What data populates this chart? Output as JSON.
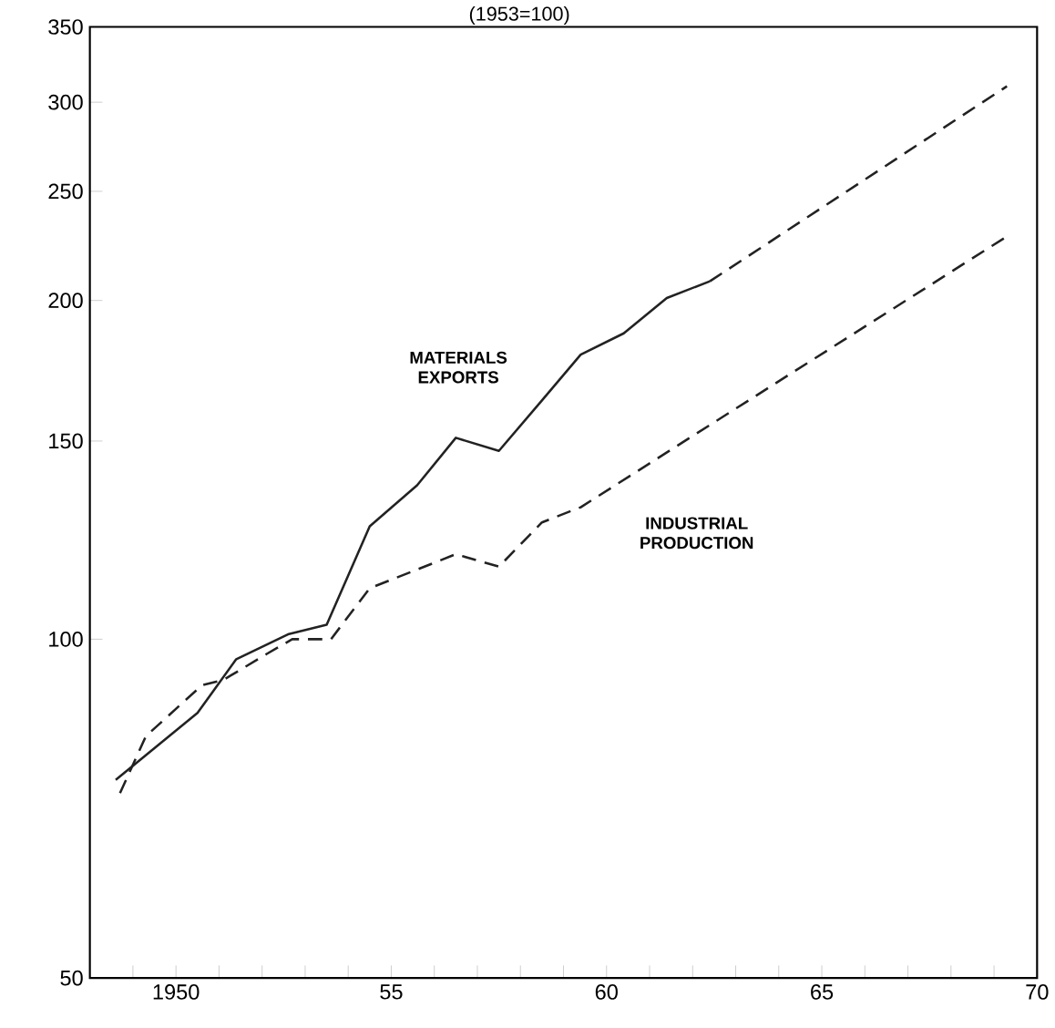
{
  "chart_data": {
    "type": "line",
    "title": "(1953=100)",
    "log": "y",
    "marker": "none",
    "xlim": [
      1948,
      1970
    ],
    "ylim": [
      50,
      350
    ],
    "xticks": [
      {
        "value": 1949,
        "label": null
      },
      {
        "value": 1950,
        "label": "1950"
      },
      {
        "value": 1951,
        "label": null
      },
      {
        "value": 1952,
        "label": null
      },
      {
        "value": 1953,
        "label": null
      },
      {
        "value": 1954,
        "label": null
      },
      {
        "value": 1955,
        "label": "55"
      },
      {
        "value": 1956,
        "label": null
      },
      {
        "value": 1957,
        "label": null
      },
      {
        "value": 1958,
        "label": null
      },
      {
        "value": 1959,
        "label": null
      },
      {
        "value": 1960,
        "label": "60"
      },
      {
        "value": 1961,
        "label": null
      },
      {
        "value": 1962,
        "label": null
      },
      {
        "value": 1963,
        "label": null
      },
      {
        "value": 1964,
        "label": null
      },
      {
        "value": 1965,
        "label": "65"
      },
      {
        "value": 1966,
        "label": null
      },
      {
        "value": 1967,
        "label": null
      },
      {
        "value": 1968,
        "label": null
      },
      {
        "value": 1969,
        "label": null
      },
      {
        "value": 1970,
        "label": "70"
      }
    ],
    "yticks": [
      50,
      100,
      150,
      200,
      250,
      300,
      350
    ],
    "series": [
      {
        "name": "MATERIALS EXPORTS",
        "color": "#222222",
        "line_style": "solid",
        "x": [
          1948.6,
          1950.5,
          1951.4,
          1952.6,
          1953.5,
          1954.5,
          1955.6,
          1956.5,
          1957.5,
          1958.5,
          1959.4,
          1960.4,
          1961.4,
          1962.4
        ],
        "values": [
          75,
          86,
          96,
          101,
          103,
          126,
          137,
          151,
          147,
          163,
          179,
          187,
          201,
          208
        ]
      },
      {
        "color": "#222222",
        "line_style": "dashed",
        "x": [
          1962.4,
          1969.3
        ],
        "values": [
          208,
          310
        ]
      },
      {
        "name": "INDUSTRIAL PRODUCTION",
        "color": "#222222",
        "line_style": "dashed",
        "x": [
          1948.7,
          1949.3,
          1950.6,
          1951.1,
          1952.1,
          1952.7,
          1953.6,
          1954.5,
          1956.5,
          1957.5,
          1958.5,
          1959.4,
          1962.4,
          1969.3
        ],
        "values": [
          73,
          82,
          91,
          92,
          97,
          100,
          100,
          111,
          119,
          116,
          127,
          131,
          155,
          228
        ]
      }
    ]
  }
}
